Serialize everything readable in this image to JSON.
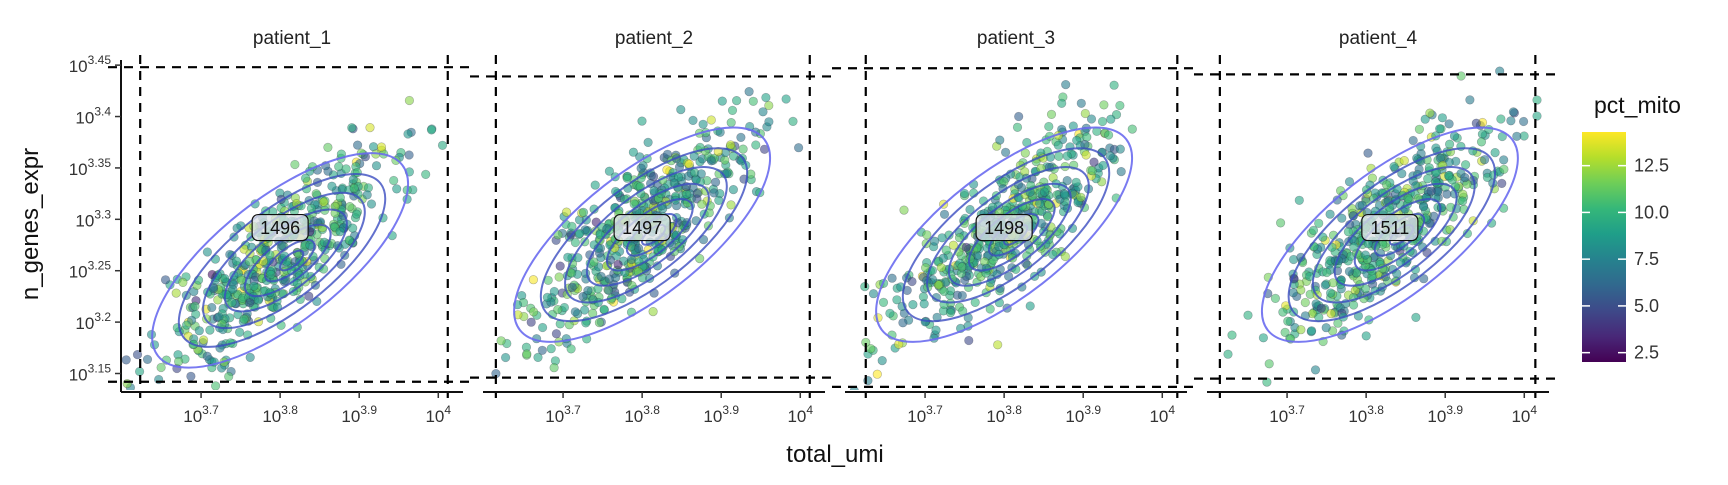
{
  "chart_data": {
    "type": "scatter",
    "title": "",
    "xlabel": "total_umi",
    "ylabel": "n_genes_expr",
    "x_scale": "log10",
    "y_scale": "log10",
    "xlim_log10": [
      3.6,
      4.03
    ],
    "ylim_log10": [
      3.132,
      3.455
    ],
    "x_ticks": [
      {
        "value": 3.7,
        "base": "10",
        "exp": "3.7"
      },
      {
        "value": 3.8,
        "base": "10",
        "exp": "3.8"
      },
      {
        "value": 3.9,
        "base": "10",
        "exp": "3.9"
      },
      {
        "value": 4.0,
        "base": "10",
        "exp": "4"
      }
    ],
    "y_ticks": [
      {
        "value": 3.15,
        "base": "10",
        "exp": "3.15"
      },
      {
        "value": 3.2,
        "base": "10",
        "exp": "3.2"
      },
      {
        "value": 3.25,
        "base": "10",
        "exp": "3.25"
      },
      {
        "value": 3.3,
        "base": "10",
        "exp": "3.3"
      },
      {
        "value": 3.35,
        "base": "10",
        "exp": "3.35"
      },
      {
        "value": 3.4,
        "base": "10",
        "exp": "3.4"
      },
      {
        "value": 3.45,
        "base": "10",
        "exp": "3.45"
      }
    ],
    "color_legend": {
      "title": "pct_mito",
      "range": [
        2,
        14.3
      ],
      "ticks": [
        "2.5",
        "5.0",
        "7.5",
        "10.0",
        "12.5"
      ],
      "tick_values": [
        2.5,
        5.0,
        7.5,
        10.0,
        12.5
      ],
      "palette": [
        "#440154",
        "#482878",
        "#3e4989",
        "#31688e",
        "#26828e",
        "#1f9e89",
        "#35b779",
        "#6ece58",
        "#b5de2b",
        "#fde725"
      ],
      "placement": "right"
    },
    "facets": [
      {
        "name": "patient_1",
        "count_label": "1496",
        "x_min_cut": 3.623,
        "x_max_cut": 4.012,
        "y_min_cut": 3.142,
        "y_max_cut": 3.448,
        "center": [
          3.8,
          3.265
        ]
      },
      {
        "name": "patient_2",
        "count_label": "1497",
        "x_min_cut": 3.615,
        "x_max_cut": 4.012,
        "y_min_cut": 3.146,
        "y_max_cut": 3.439,
        "center": [
          3.8,
          3.29
        ]
      },
      {
        "name": "patient_3",
        "count_label": "1498",
        "x_min_cut": 3.625,
        "x_max_cut": 4.019,
        "y_min_cut": 3.137,
        "y_max_cut": 3.447,
        "center": [
          3.8,
          3.29
        ]
      },
      {
        "name": "patient_4",
        "count_label": "1511",
        "x_min_cut": 3.615,
        "x_max_cut": 4.014,
        "y_min_cut": 3.145,
        "y_max_cut": 3.441,
        "center": [
          3.83,
          3.29
        ]
      }
    ],
    "points_per_panel_estimate": 1500,
    "density_contours": true,
    "contour_color": "#3b4cc0",
    "cutoff_line_style": "dashed black",
    "grid": false
  }
}
